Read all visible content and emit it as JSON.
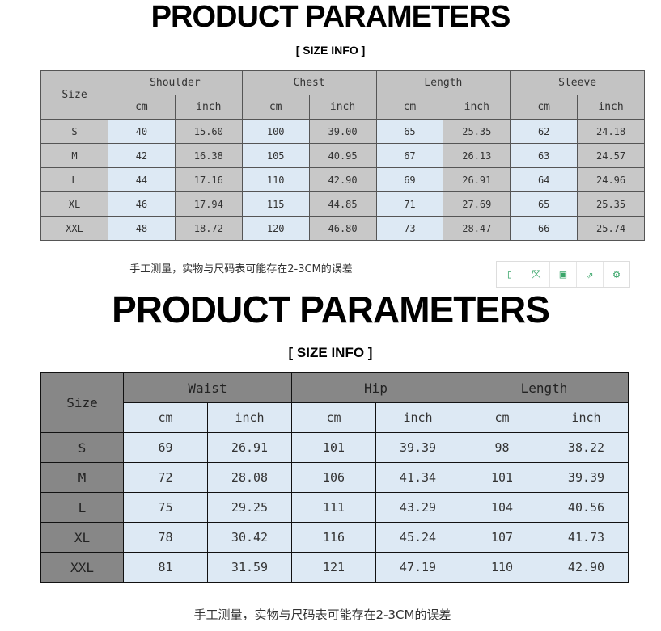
{
  "tops": {
    "title": "PRODUCT PARAMETERS",
    "subtitle": "[ SIZE  INFO ]",
    "note": "手工测量，实物与尺码表可能存在2-3CM的误差",
    "size_label": "Size",
    "groups": [
      "Shoulder",
      "Chest",
      "Length",
      "Sleeve"
    ],
    "units": [
      "cm",
      "inch"
    ],
    "rows": [
      [
        "S",
        "40",
        "15.60",
        "100",
        "39.00",
        "65",
        "25.35",
        "62",
        "24.18"
      ],
      [
        "M",
        "42",
        "16.38",
        "105",
        "40.95",
        "67",
        "26.13",
        "63",
        "24.57"
      ],
      [
        "L",
        "44",
        "17.16",
        "110",
        "42.90",
        "69",
        "26.91",
        "64",
        "24.96"
      ],
      [
        "XL",
        "46",
        "17.94",
        "115",
        "44.85",
        "71",
        "27.69",
        "65",
        "25.35"
      ],
      [
        "XXL",
        "48",
        "18.72",
        "120",
        "46.80",
        "73",
        "28.47",
        "66",
        "25.74"
      ]
    ]
  },
  "bottoms": {
    "title": "PRODUCT PARAMETERS",
    "subtitle": "[ SIZE  INFO ]",
    "note": "手工测量，实物与尺码表可能存在2-3CM的误差",
    "size_label": "Size",
    "groups": [
      "Waist",
      "Hip",
      "Length"
    ],
    "units": [
      "cm",
      "inch"
    ],
    "rows": [
      [
        "S",
        "69",
        "26.91",
        "101",
        "39.39",
        "98",
        "38.22"
      ],
      [
        "M",
        "72",
        "28.08",
        "106",
        "41.34",
        "101",
        "39.39"
      ],
      [
        "L",
        "75",
        "29.25",
        "111",
        "43.29",
        "104",
        "40.56"
      ],
      [
        "XL",
        "78",
        "30.42",
        "116",
        "45.24",
        "107",
        "41.73"
      ],
      [
        "XXL",
        "81",
        "31.59",
        "121",
        "47.19",
        "110",
        "42.90"
      ]
    ]
  },
  "toolbar": {
    "icons": [
      "tablet-icon",
      "fullscreen-icon",
      "save-icon",
      "share-icon",
      "settings-icon"
    ],
    "accent": "#3aa66a"
  }
}
